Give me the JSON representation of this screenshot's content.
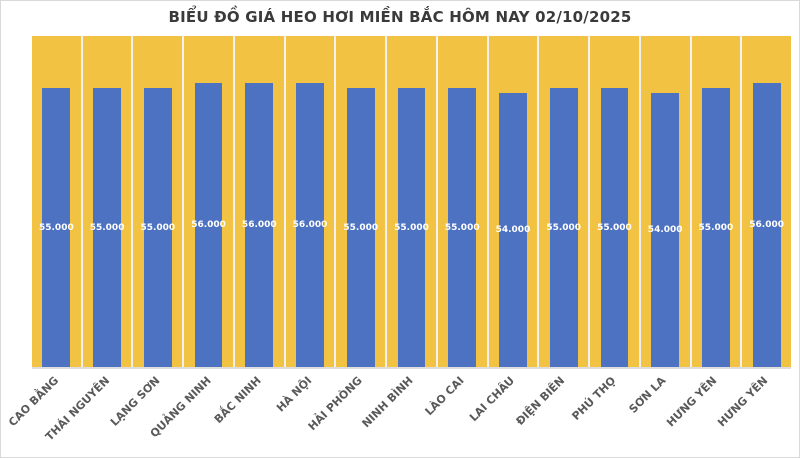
{
  "chart_data": {
    "type": "bar",
    "title": "BIỂU ĐỒ GIÁ HEO HƠI MIỀN BẮC HÔM NAY 02/10/2025",
    "categories": [
      "CAO BẰNG",
      "THÁI NGUYÊN",
      "LẠNG SƠN",
      "QUẢNG NINH",
      "BẮC NINH",
      "HÀ NỘI",
      "HẢI PHÒNG",
      "NINH BÌNH",
      "LÀO CAI",
      "LAI CHÂU",
      "ĐIỆN BIÊN",
      "PHÚ THỌ",
      "SƠN LA",
      "HƯNG YÊN",
      "HƯNG YÊN"
    ],
    "values": [
      55000,
      55000,
      55000,
      56000,
      56000,
      56000,
      55000,
      55000,
      55000,
      54000,
      55000,
      55000,
      54000,
      55000,
      56000
    ],
    "data_labels": [
      "55.000",
      "55.000",
      "55.000",
      "56.000",
      "56.000",
      "56.000",
      "55.000",
      "55.000",
      "55.000",
      "54.000",
      "55.000",
      "55.000",
      "54.000",
      "55.000",
      "56.000"
    ],
    "xlabel": "",
    "ylabel": "",
    "ylim": [
      0,
      65300
    ],
    "grid": "vertical-category-separators",
    "legend": "none",
    "data_label_position": "inside-center",
    "x_label_rotation_deg": 45,
    "colors": {
      "bar": "#4D72C2",
      "plot_background": "#F2C342",
      "data_label_text": "#FFFFFF",
      "axis_label_text": "#595959",
      "title_text": "#3A3A3A",
      "gridline": "#F1F1F1",
      "background": "#FFFFFF",
      "border": "#D9D9D9"
    }
  }
}
